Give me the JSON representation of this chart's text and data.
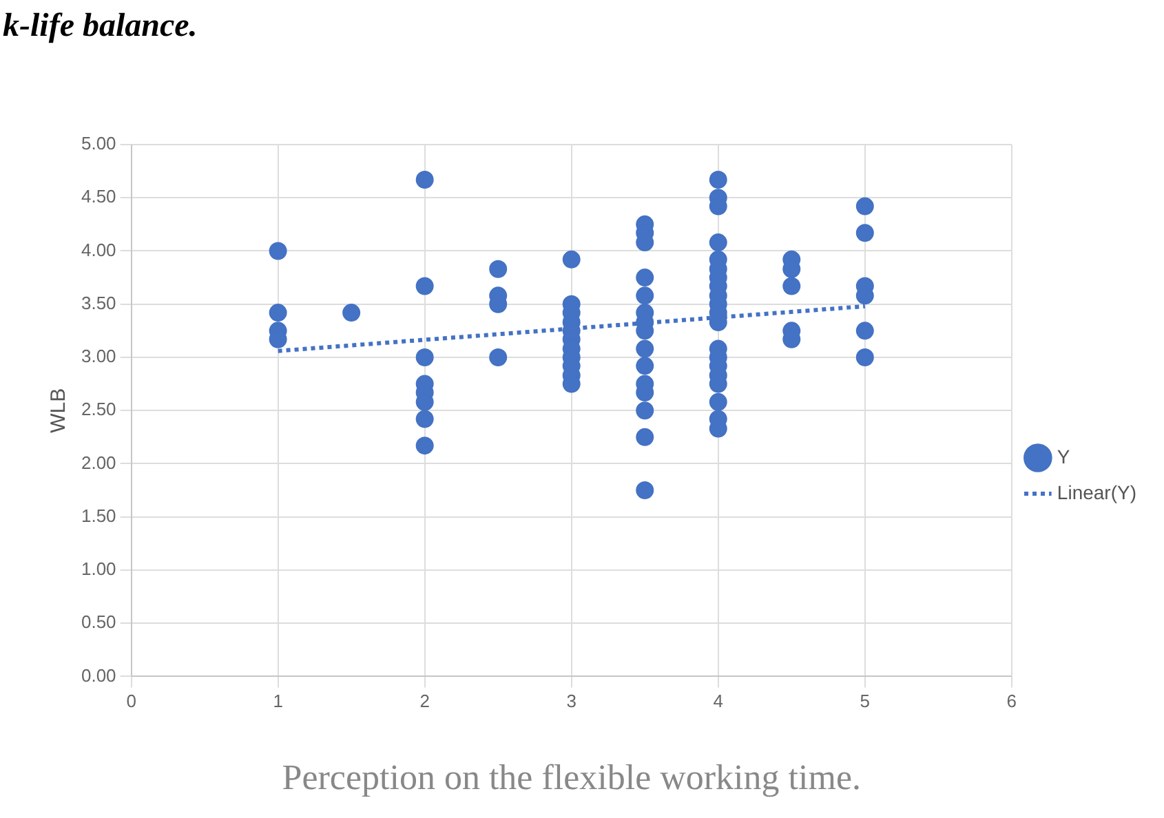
{
  "chart_data": {
    "type": "scatter",
    "annotations": [
      "k-life balance."
    ],
    "xlabel": "Perception on the flexible working time.",
    "ylabel": "WLB",
    "xlim": [
      0,
      6
    ],
    "xticks": [
      0,
      1,
      2,
      3,
      4,
      5,
      6
    ],
    "ylim": [
      0,
      5
    ],
    "yticks": [
      {
        "value": 0,
        "label": "0.00"
      },
      {
        "value": 0.5,
        "label": "0.50"
      },
      {
        "value": 1,
        "label": "1.00"
      },
      {
        "value": 1.5,
        "label": "1.50"
      },
      {
        "value": 2,
        "label": "2.00"
      },
      {
        "value": 2.5,
        "label": "2.50"
      },
      {
        "value": 3,
        "label": "3.00"
      },
      {
        "value": 3.5,
        "label": "3.50"
      },
      {
        "value": 4,
        "label": "4.00"
      },
      {
        "value": 4.5,
        "label": "4.50"
      },
      {
        "value": 5,
        "label": "5.00"
      }
    ],
    "grid": true,
    "legend": "right",
    "series": [
      {
        "name": "Y",
        "marker": "circle",
        "color": "#4472c4",
        "x": [
          1,
          1,
          1,
          1,
          1.5,
          2,
          2,
          2,
          2,
          2,
          2,
          2,
          2,
          2.5,
          2.5,
          2.5,
          2.5,
          3,
          3,
          3,
          3,
          3,
          3,
          3,
          3,
          3,
          3,
          3,
          3.5,
          3.5,
          3.5,
          3.5,
          3.5,
          3.5,
          3.5,
          3.5,
          3.5,
          3.5,
          3.5,
          3.5,
          3.5,
          3.5,
          3.5,
          4,
          4,
          4,
          4,
          4,
          4,
          4,
          4,
          4,
          4,
          4,
          4,
          4,
          4,
          4,
          4,
          4,
          4,
          4,
          4,
          4.5,
          4.5,
          4.5,
          4.5,
          4.5,
          5,
          5,
          5,
          5,
          5,
          5
        ],
        "values": [
          4.0,
          3.42,
          3.25,
          3.17,
          3.42,
          4.67,
          3.67,
          3.0,
          2.75,
          2.67,
          2.58,
          2.42,
          2.17,
          3.83,
          3.58,
          3.5,
          3.0,
          3.92,
          3.5,
          3.42,
          3.33,
          3.25,
          3.17,
          3.08,
          3.0,
          2.92,
          2.83,
          2.75,
          4.25,
          4.17,
          4.08,
          3.75,
          3.58,
          3.42,
          3.33,
          3.25,
          3.08,
          2.92,
          2.75,
          2.67,
          2.5,
          2.25,
          1.75,
          4.67,
          4.5,
          4.42,
          4.08,
          3.92,
          3.83,
          3.75,
          3.67,
          3.58,
          3.5,
          3.42,
          3.33,
          3.08,
          3.0,
          2.92,
          2.83,
          2.75,
          2.58,
          2.42,
          2.33,
          3.92,
          3.83,
          3.67,
          3.25,
          3.17,
          4.42,
          4.17,
          3.67,
          3.58,
          3.25,
          3.0
        ]
      },
      {
        "name": "Linear(Y)",
        "type": "line",
        "marker": "none",
        "line_style": "dotted",
        "color": "#4472c4",
        "x": [
          1,
          5
        ],
        "values": [
          3.06,
          3.48
        ]
      }
    ]
  }
}
